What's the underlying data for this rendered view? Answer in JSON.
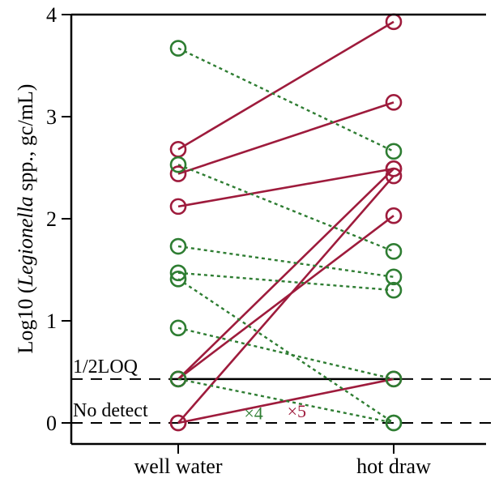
{
  "chart_data": {
    "type": "scatter",
    "subtype": "paired-slope",
    "categories": [
      "well water",
      "hot draw"
    ],
    "ylabel": {
      "prefix": "Log10 (",
      "italic": "Legionella",
      "suffix": " spp., gc/mL)"
    },
    "ylim": [
      0,
      4
    ],
    "yticks": [
      "0",
      "1",
      "2",
      "3",
      "4"
    ],
    "grid": false,
    "colors": {
      "increase": "#9e1b3c",
      "decrease": "#2e7d32",
      "axis": "#000000"
    },
    "reference_lines": [
      {
        "label": "1/2LOQ",
        "value": 0.43,
        "style": "solid-to-dashed"
      },
      {
        "label": "No detect",
        "value": 0.0,
        "style": "dashed"
      }
    ],
    "multiplicity_labels": [
      {
        "text": "×5",
        "series": "increase",
        "at": [
          0.55,
          0.12
        ]
      },
      {
        "text": "×4",
        "series": "decrease",
        "at": [
          0.35,
          0.1
        ]
      }
    ],
    "pairs": [
      {
        "well_water": 2.68,
        "hot_draw": 3.93,
        "series": "increase"
      },
      {
        "well_water": 2.44,
        "hot_draw": 3.14,
        "series": "increase"
      },
      {
        "well_water": 2.12,
        "hot_draw": 2.49,
        "series": "increase"
      },
      {
        "well_water": 0.43,
        "hot_draw": 2.49,
        "series": "increase"
      },
      {
        "well_water": 0.43,
        "hot_draw": 2.03,
        "series": "increase"
      },
      {
        "well_water": 0.0,
        "hot_draw": 2.42,
        "series": "increase"
      },
      {
        "well_water": 0.0,
        "hot_draw": 0.43,
        "series": "increase"
      },
      {
        "well_water": 3.67,
        "hot_draw": 2.66,
        "series": "decrease"
      },
      {
        "well_water": 2.53,
        "hot_draw": 1.68,
        "series": "decrease"
      },
      {
        "well_water": 1.73,
        "hot_draw": 1.43,
        "series": "decrease"
      },
      {
        "well_water": 1.47,
        "hot_draw": 1.3,
        "series": "decrease"
      },
      {
        "well_water": 1.41,
        "hot_draw": 0.0,
        "series": "decrease"
      },
      {
        "well_water": 0.93,
        "hot_draw": 0.43,
        "series": "decrease"
      },
      {
        "well_water": 0.43,
        "hot_draw": 0.0,
        "series": "decrease"
      }
    ]
  }
}
